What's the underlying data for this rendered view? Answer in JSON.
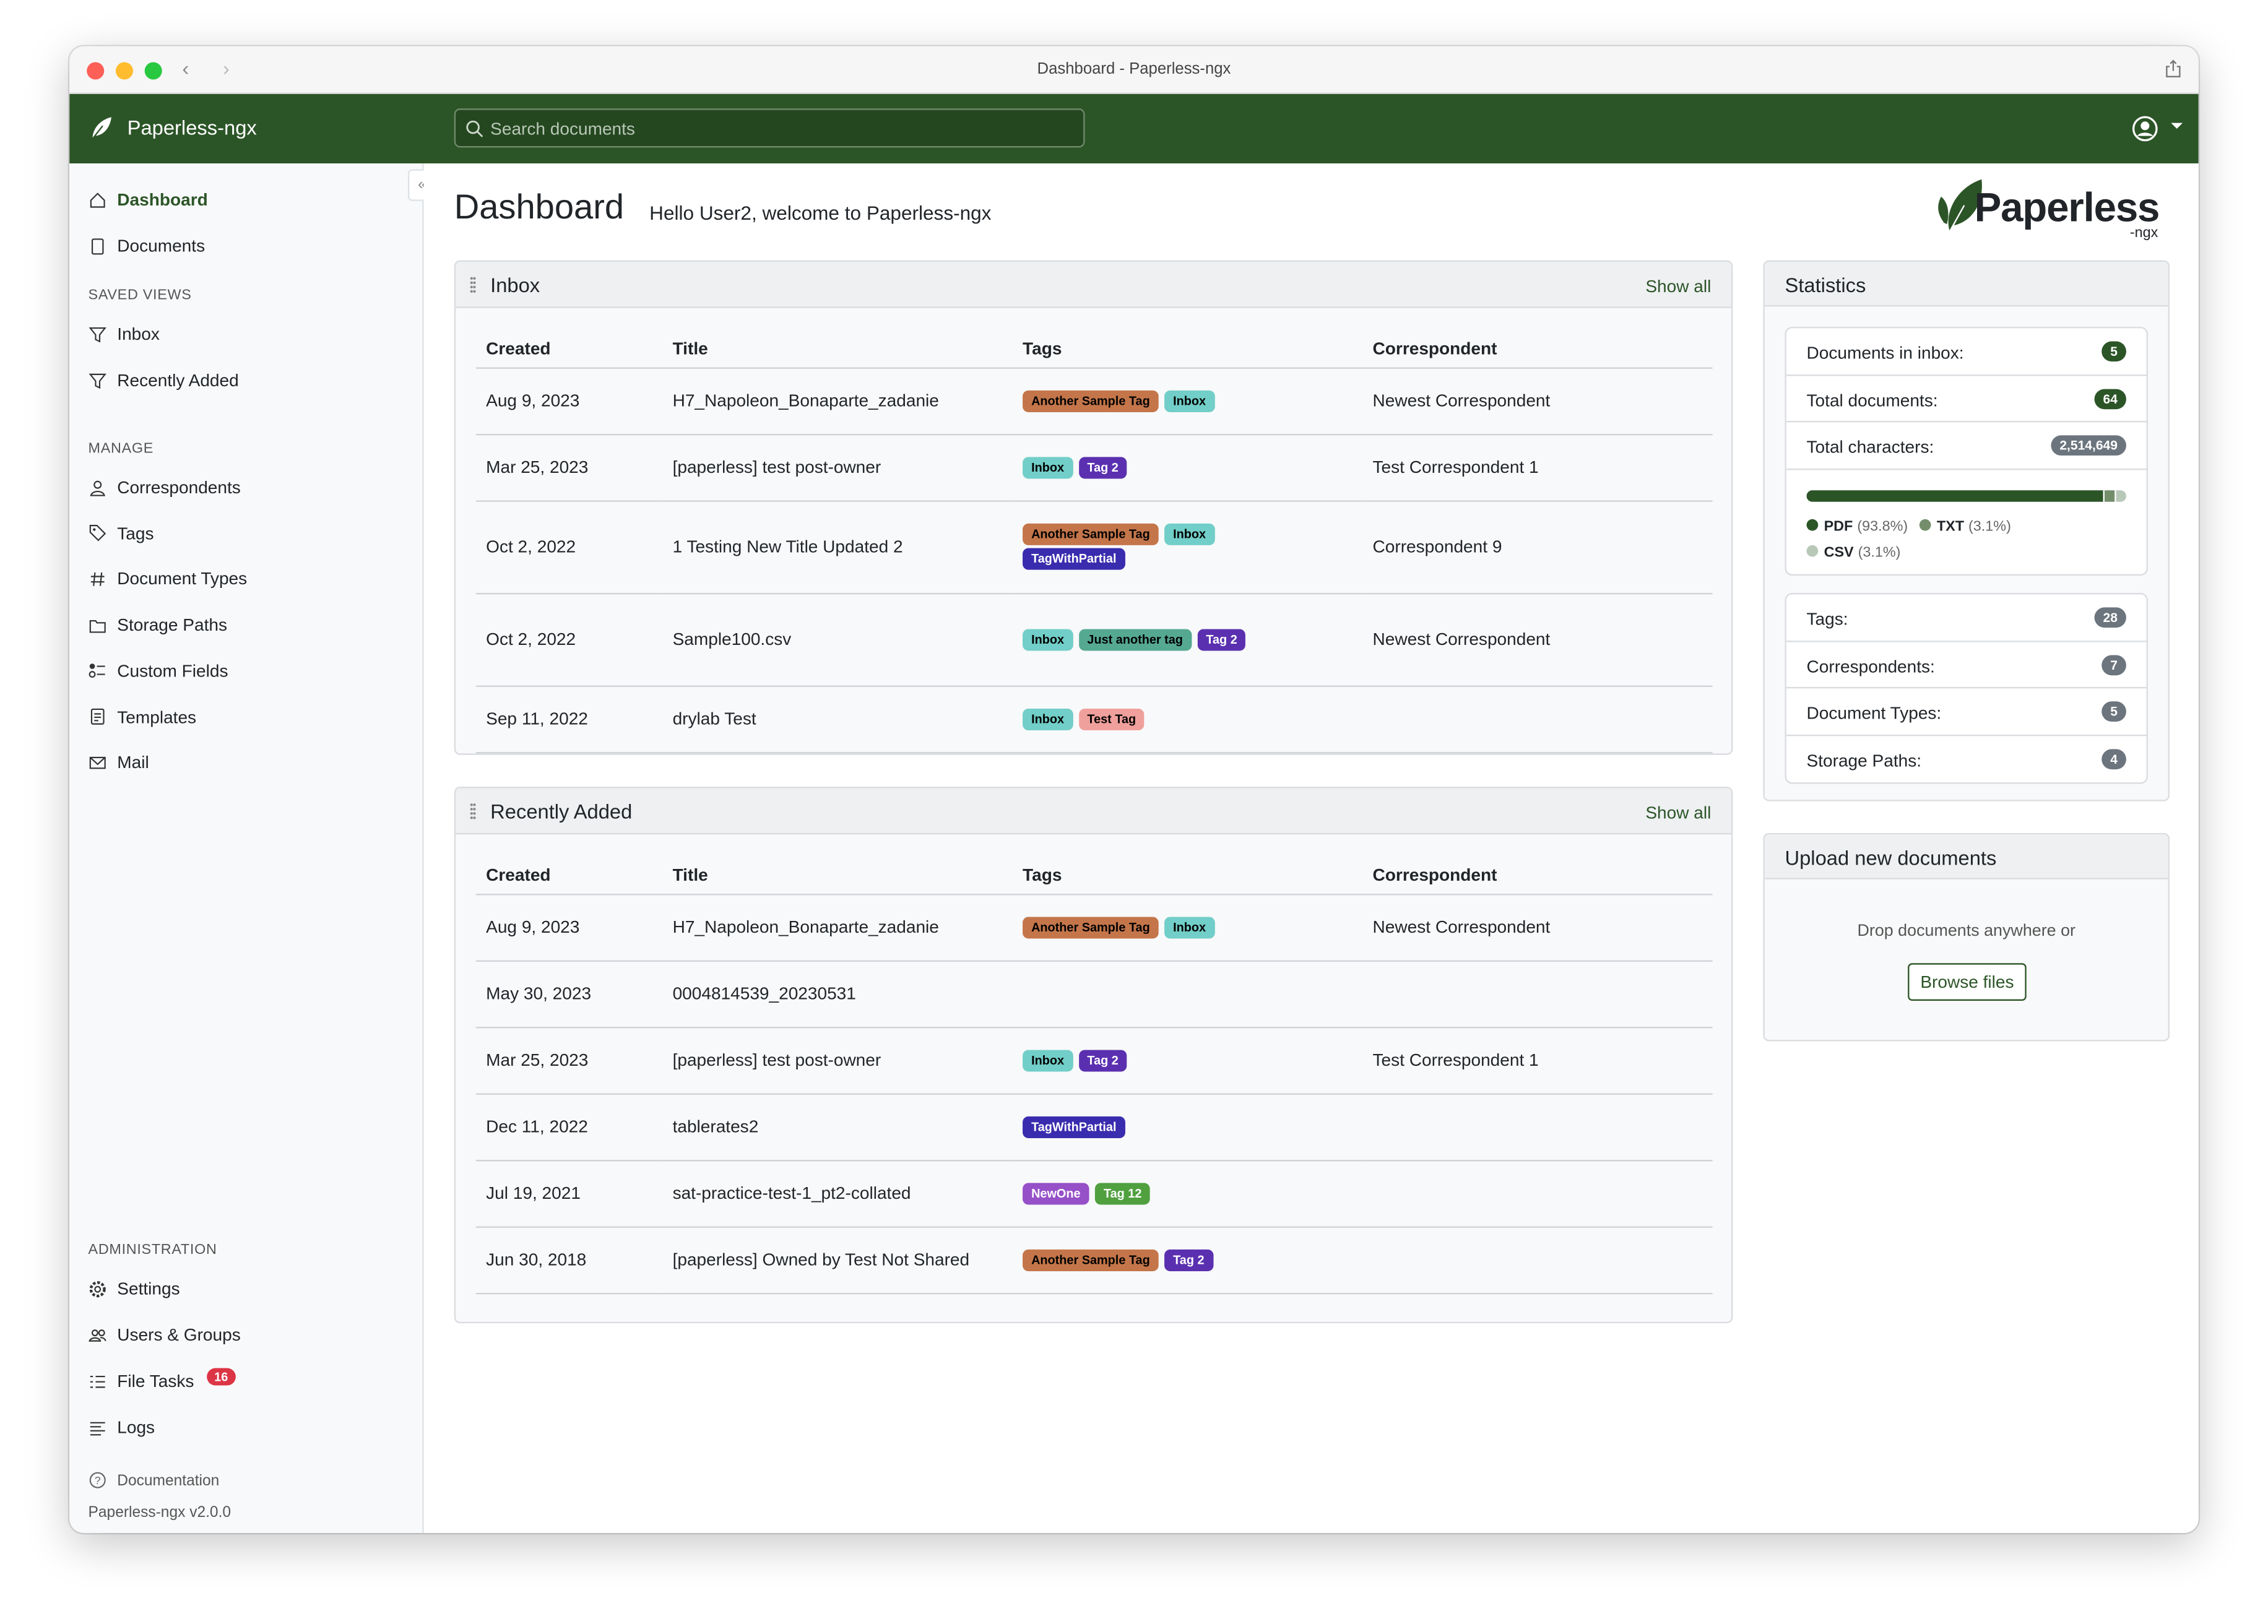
{
  "window": {
    "title": "Dashboard - Paperless-ngx"
  },
  "header": {
    "brand": "Paperless-ngx",
    "search_placeholder": "Search documents",
    "accent": "#2c5527"
  },
  "sidebar": {
    "main": [
      {
        "label": "Dashboard",
        "icon": "house-icon",
        "active": true
      },
      {
        "label": "Documents",
        "icon": "file-icon"
      }
    ],
    "saved_views_heading": "SAVED VIEWS",
    "saved_views": [
      {
        "label": "Inbox",
        "icon": "funnel-icon"
      },
      {
        "label": "Recently Added",
        "icon": "funnel-icon"
      }
    ],
    "manage_heading": "MANAGE",
    "manage": [
      {
        "label": "Correspondents",
        "icon": "person-icon"
      },
      {
        "label": "Tags",
        "icon": "tag-icon"
      },
      {
        "label": "Document Types",
        "icon": "hash-icon"
      },
      {
        "label": "Storage Paths",
        "icon": "folder-icon"
      },
      {
        "label": "Custom Fields",
        "icon": "ui-radios-icon"
      },
      {
        "label": "Templates",
        "icon": "file-text-icon"
      },
      {
        "label": "Mail",
        "icon": "envelope-icon"
      }
    ],
    "admin_heading": "ADMINISTRATION",
    "admin": [
      {
        "label": "Settings",
        "icon": "gear-icon"
      },
      {
        "label": "Users & Groups",
        "icon": "people-icon"
      },
      {
        "label": "File Tasks",
        "icon": "list-task-icon",
        "badge": "16"
      },
      {
        "label": "Logs",
        "icon": "text-left-icon"
      }
    ],
    "documentation": "Documentation",
    "version": "Paperless-ngx v2.0.0"
  },
  "page": {
    "title": "Dashboard",
    "welcome": "Hello User2, welcome to Paperless-ngx",
    "logo_text": "Paperless",
    "logo_sub": "-ngx"
  },
  "tag_colors": {
    "Another Sample Tag": [
      "#c4764a",
      "#000"
    ],
    "Inbox": [
      "#72cec8",
      "#000"
    ],
    "Tag 2": [
      "#5b30b0",
      "#fff"
    ],
    "TagWithPartial": [
      "#3a2cae",
      "#fff"
    ],
    "Just another tag": [
      "#55a991",
      "#000"
    ],
    "Test Tag": [
      "#f0a09c",
      "#000"
    ],
    "NewOne": [
      "#9650c8",
      "#fff"
    ],
    "Tag 12": [
      "#50a040",
      "#fff"
    ]
  },
  "inbox": {
    "title": "Inbox",
    "show_all": "Show all",
    "columns": [
      "Created",
      "Title",
      "Tags",
      "Correspondent"
    ],
    "rows": [
      {
        "created": "Aug 9, 2023",
        "title": "H7_Napoleon_Bonaparte_zadanie",
        "tags": [
          "Another Sample Tag",
          "Inbox"
        ],
        "correspondent": "Newest Correspondent"
      },
      {
        "created": "Mar 25, 2023",
        "title": "[paperless] test post-owner",
        "tags": [
          "Inbox",
          "Tag 2"
        ],
        "correspondent": "Test Correspondent 1"
      },
      {
        "created": "Oct 2, 2022",
        "title": "1 Testing New Title Updated 2",
        "tags": [
          "Another Sample Tag",
          "Inbox",
          "TagWithPartial"
        ],
        "correspondent": "Correspondent 9"
      },
      {
        "created": "Oct 2, 2022",
        "title": "Sample100.csv",
        "tags": [
          "Inbox",
          "Just another tag",
          "Tag 2"
        ],
        "correspondent": "Newest Correspondent"
      },
      {
        "created": "Sep 11, 2022",
        "title": "drylab Test",
        "tags": [
          "Inbox",
          "Test Tag"
        ],
        "correspondent": ""
      }
    ]
  },
  "recent": {
    "title": "Recently Added",
    "show_all": "Show all",
    "columns": [
      "Created",
      "Title",
      "Tags",
      "Correspondent"
    ],
    "rows": [
      {
        "created": "Aug 9, 2023",
        "title": "H7_Napoleon_Bonaparte_zadanie",
        "tags": [
          "Another Sample Tag",
          "Inbox"
        ],
        "correspondent": "Newest Correspondent"
      },
      {
        "created": "May 30, 2023",
        "title": "0004814539_20230531",
        "tags": [],
        "correspondent": ""
      },
      {
        "created": "Mar 25, 2023",
        "title": "[paperless] test post-owner",
        "tags": [
          "Inbox",
          "Tag 2"
        ],
        "correspondent": "Test Correspondent 1"
      },
      {
        "created": "Dec 11, 2022",
        "title": "tablerates2",
        "tags": [
          "TagWithPartial"
        ],
        "correspondent": ""
      },
      {
        "created": "Jul 19, 2021",
        "title": "sat-practice-test-1_pt2-collated",
        "tags": [
          "NewOne",
          "Tag 12"
        ],
        "correspondent": ""
      },
      {
        "created": "Jun 30, 2018",
        "title": "[paperless] Owned by Test Not Shared",
        "tags": [
          "Another Sample Tag",
          "Tag 2"
        ],
        "correspondent": ""
      }
    ]
  },
  "statistics": {
    "title": "Statistics",
    "group1": [
      {
        "label": "Documents in inbox:",
        "value": "5",
        "color": "#2c5527"
      },
      {
        "label": "Total documents:",
        "value": "64",
        "color": "#2c5527"
      },
      {
        "label": "Total characters:",
        "value": "2,514,649",
        "color": "#6c757d"
      }
    ],
    "file_types": [
      {
        "name": "PDF",
        "pct": "(93.8%)",
        "value": 93.8,
        "color": "#2c5527"
      },
      {
        "name": "TXT",
        "pct": "(3.1%)",
        "value": 3.1,
        "color": "#748e6c"
      },
      {
        "name": "CSV",
        "pct": "(3.1%)",
        "value": 3.1,
        "color": "#b8c8b8"
      }
    ],
    "group2": [
      {
        "label": "Tags:",
        "value": "28"
      },
      {
        "label": "Correspondents:",
        "value": "7"
      },
      {
        "label": "Document Types:",
        "value": "5"
      },
      {
        "label": "Storage Paths:",
        "value": "4"
      }
    ]
  },
  "upload": {
    "title": "Upload new documents",
    "hint": "Drop documents anywhere or",
    "browse": "Browse files"
  }
}
